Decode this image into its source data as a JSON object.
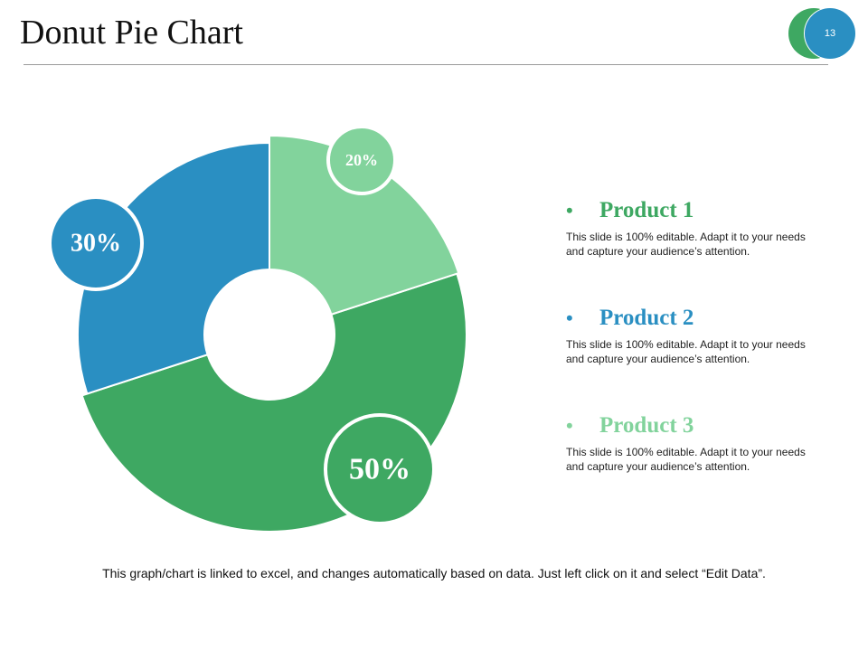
{
  "slide": {
    "title": "Donut Pie Chart",
    "page_number": "13",
    "footer": "This graph/chart is linked to excel, and changes automatically based on data. Just left click on it and select “Edit Data”."
  },
  "colors": {
    "product1": "#3ea862",
    "product2": "#2a8fc2",
    "product3": "#82d39c"
  },
  "legend": [
    {
      "bullet": "•",
      "label": "Product 1",
      "color": "#3ea862",
      "desc": "This slide is 100% editable. Adapt it to your needs and capture your audience’s attention."
    },
    {
      "bullet": "•",
      "label": "Product 2",
      "color": "#2a8fc2",
      "desc": "This slide is 100% editable. Adapt it to your needs and capture your audience’s attention."
    },
    {
      "bullet": "•",
      "label": "Product 3",
      "color": "#82d39c",
      "desc": "This slide is 100% editable. Adapt it to your needs and capture your audience’s attention."
    }
  ],
  "chart_data": {
    "type": "pie",
    "title": "Donut Pie Chart",
    "categories": [
      "Product 1",
      "Product 2",
      "Product 3"
    ],
    "values": [
      50,
      30,
      20
    ],
    "labels": [
      "50%",
      "30%",
      "20%"
    ],
    "colors": [
      "#3ea862",
      "#2a8fc2",
      "#82d39c"
    ],
    "donut": true
  }
}
